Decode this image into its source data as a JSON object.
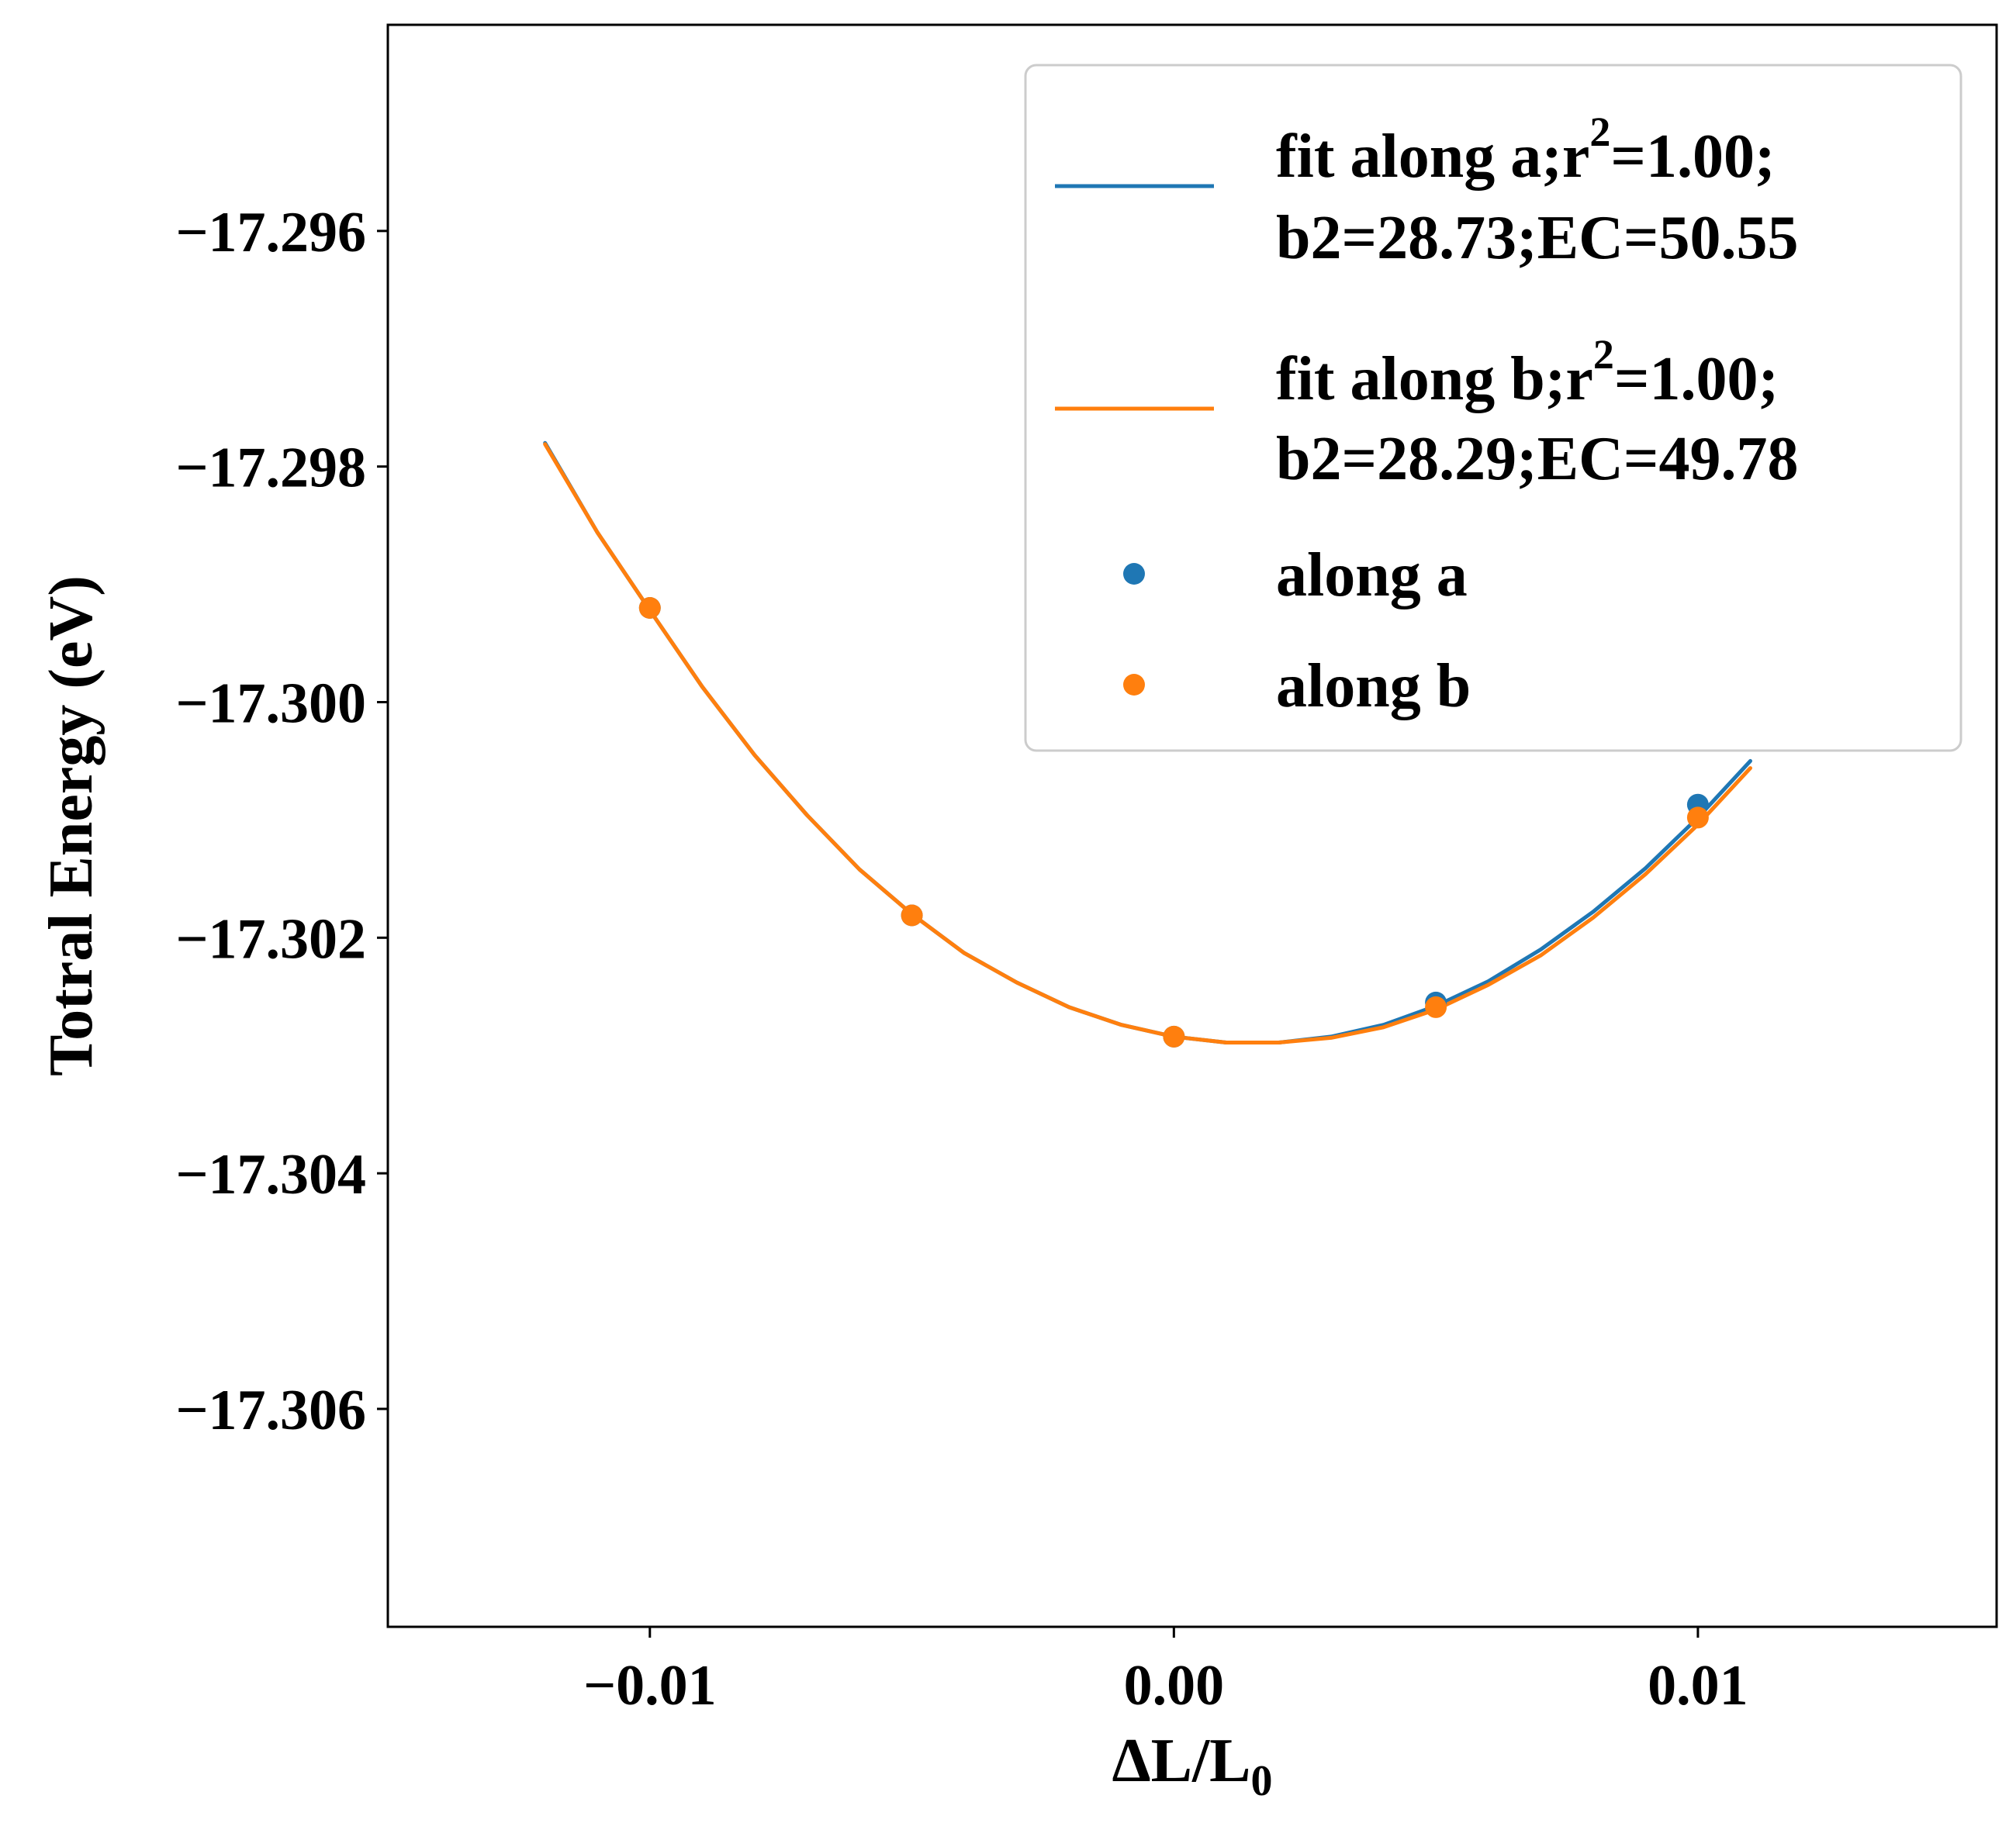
{
  "chart_data": {
    "type": "scatter",
    "xlabel": "ΔL/L",
    "xlabel_sub": "0",
    "ylabel": "Totral Energy (eV)",
    "xlim": [
      -0.015,
      0.0157
    ],
    "ylim": [
      -17.30785,
      -17.29425
    ],
    "xticks": [
      -0.01,
      0.0,
      0.01
    ],
    "xtick_labels": [
      "−0.01",
      "0.00",
      "0.01"
    ],
    "yticks": [
      -17.296,
      -17.298,
      -17.3,
      -17.302,
      -17.304,
      -17.306
    ],
    "ytick_labels": [
      "−17.296",
      "−17.298",
      "−17.300",
      "−17.302",
      "−17.304",
      "−17.306"
    ],
    "grid": false,
    "legend_position": "top-right",
    "colors": {
      "series_a": "#1f77b4",
      "series_b": "#ff7f0e"
    },
    "fits": [
      {
        "name": "fit along a;r2=1.00; b2=28.73;EC=50.55",
        "label_line1_pre": "fit along a;r",
        "label_sup": "2",
        "label_line1_post": "=1.00;",
        "label_line2": "b2=28.73;EC=50.55",
        "color": "#1f77b4",
        "x": [
          -0.012,
          -0.011,
          -0.01,
          -0.009,
          -0.008,
          -0.007,
          -0.006,
          -0.005,
          -0.004,
          -0.003,
          -0.002,
          -0.001,
          0.0,
          0.001,
          0.002,
          0.003,
          0.004,
          0.005,
          0.006,
          0.007,
          0.008,
          0.009,
          0.01,
          0.011
        ],
        "y": [
          -17.2978,
          -17.29856,
          -17.29922,
          -17.29987,
          -17.30045,
          -17.30096,
          -17.30142,
          -17.3018,
          -17.30213,
          -17.30238,
          -17.30259,
          -17.30274,
          -17.30284,
          -17.30289,
          -17.30289,
          -17.30284,
          -17.30274,
          -17.30258,
          -17.30237,
          -17.3021,
          -17.30178,
          -17.30141,
          -17.30098,
          -17.3005
        ]
      },
      {
        "name": "fit along b;r2=1.00; b2=28.29;EC=49.78",
        "label_line1_pre": "fit along b;r",
        "label_sup": "2",
        "label_line1_post": "=1.00;",
        "label_line2": "b2=28.29;EC=49.78",
        "color": "#ff7f0e",
        "x": [
          -0.012,
          -0.011,
          -0.01,
          -0.009,
          -0.008,
          -0.007,
          -0.006,
          -0.005,
          -0.004,
          -0.003,
          -0.002,
          -0.001,
          0.0,
          0.001,
          0.002,
          0.003,
          0.004,
          0.005,
          0.006,
          0.007,
          0.008,
          0.009,
          0.01,
          0.011
        ],
        "y": [
          -17.29781,
          -17.29856,
          -17.29922,
          -17.29987,
          -17.30045,
          -17.30096,
          -17.30142,
          -17.3018,
          -17.30213,
          -17.30238,
          -17.30259,
          -17.30274,
          -17.30284,
          -17.30289,
          -17.30289,
          -17.30285,
          -17.30276,
          -17.30261,
          -17.3024,
          -17.30215,
          -17.30183,
          -17.30146,
          -17.30104,
          -17.30056
        ]
      }
    ],
    "points": [
      {
        "name": "along a",
        "color": "#1f77b4",
        "x": [
          -0.01,
          -0.005,
          0.0,
          0.005,
          0.01
        ],
        "y": [
          -17.2992,
          -17.30181,
          -17.30284,
          -17.30255,
          -17.30087
        ]
      },
      {
        "name": "along b",
        "color": "#ff7f0e",
        "x": [
          -0.01,
          -0.005,
          0.0,
          0.005,
          0.01
        ],
        "y": [
          -17.2992,
          -17.30181,
          -17.30284,
          -17.30259,
          -17.30098
        ]
      }
    ]
  }
}
